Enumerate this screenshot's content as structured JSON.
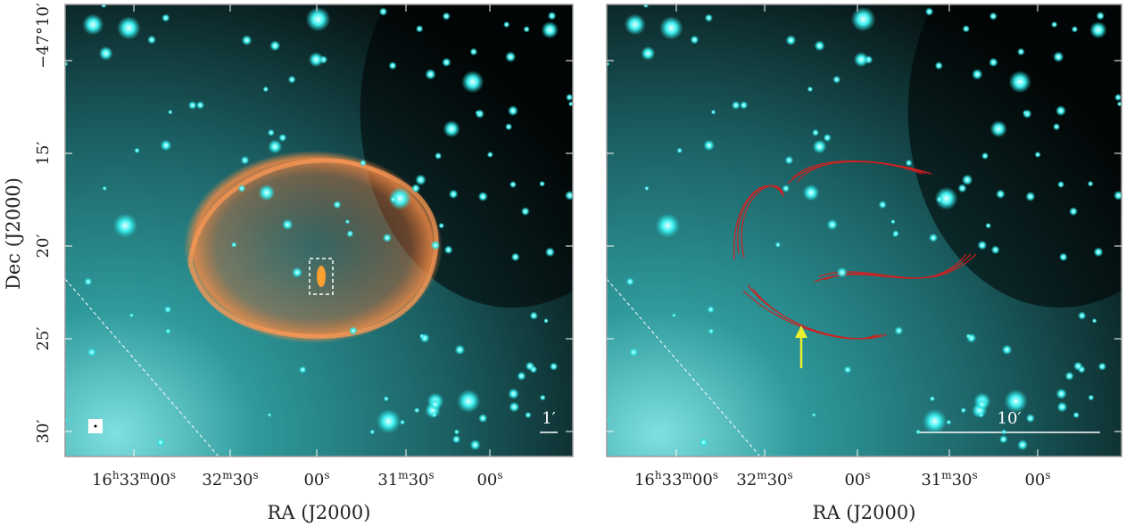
{
  "y_label": "Dec (J2000)",
  "y_ticks": [
    "−47°10′",
    "15′",
    "20′",
    "25′",
    "30′"
  ],
  "panels": [
    {
      "x_label": "RA (J2000)",
      "x_ticks": [
        [
          [
            "16",
            "h"
          ],
          [
            "33",
            "m"
          ],
          [
            "00",
            "s"
          ]
        ],
        [
          [
            "32",
            "m"
          ],
          [
            "30",
            "s"
          ]
        ],
        [
          [
            "00",
            "s"
          ]
        ],
        [
          [
            "31",
            "m"
          ],
          [
            "30",
            "s"
          ]
        ],
        [
          [
            "00",
            "s"
          ]
        ]
      ],
      "scale_label": "1′"
    },
    {
      "x_label": "RA (J2000)",
      "x_ticks": [
        [
          [
            "16",
            "h"
          ],
          [
            "33",
            "m"
          ],
          [
            "00",
            "s"
          ]
        ],
        [
          [
            "32",
            "m"
          ],
          [
            "30",
            "s"
          ]
        ],
        [
          [
            "00",
            "s"
          ]
        ],
        [
          [
            "31",
            "m"
          ],
          [
            "30",
            "s"
          ]
        ],
        [
          [
            "00",
            "s"
          ]
        ]
      ],
      "scale_label": "10′"
    }
  ]
}
